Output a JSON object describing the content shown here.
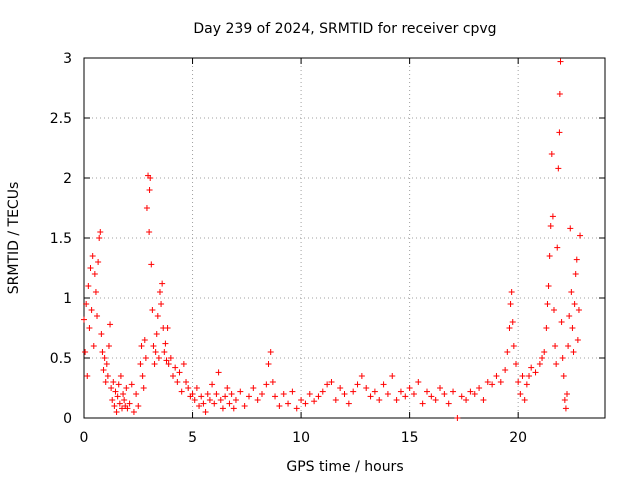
{
  "chart_data": {
    "type": "scatter",
    "title": "Day 239 of 2024, SRMTID for receiver cpvg",
    "xlabel": "GPS time / hours",
    "ylabel": "SRMTID / TECUs",
    "xlim": [
      0,
      24
    ],
    "ylim": [
      0,
      3
    ],
    "xticks": [
      0,
      5,
      10,
      15,
      20
    ],
    "yticks": [
      0,
      0.5,
      1,
      1.5,
      2,
      2.5,
      3
    ],
    "xtick_labels": [
      "0",
      "5",
      "10",
      "15",
      "20"
    ],
    "ytick_labels": [
      "0",
      "0.5",
      "1",
      "1.5",
      "2",
      "2.5",
      "3"
    ],
    "grid": true,
    "marker": "+",
    "color": "#ff0000",
    "series": [
      {
        "name": "SRMTID",
        "points": [
          [
            0.0,
            0.82
          ],
          [
            0.05,
            0.55
          ],
          [
            0.1,
            0.95
          ],
          [
            0.15,
            0.35
          ],
          [
            0.2,
            1.1
          ],
          [
            0.25,
            0.75
          ],
          [
            0.3,
            1.25
          ],
          [
            0.35,
            0.9
          ],
          [
            0.4,
            1.35
          ],
          [
            0.45,
            0.6
          ],
          [
            0.5,
            1.2
          ],
          [
            0.55,
            1.05
          ],
          [
            0.6,
            0.85
          ],
          [
            0.65,
            1.3
          ],
          [
            0.7,
            1.5
          ],
          [
            0.75,
            1.55
          ],
          [
            0.8,
            0.7
          ],
          [
            0.85,
            0.55
          ],
          [
            0.9,
            0.4
          ],
          [
            0.95,
            0.5
          ],
          [
            1.0,
            0.3
          ],
          [
            1.05,
            0.45
          ],
          [
            1.1,
            0.35
          ],
          [
            1.15,
            0.6
          ],
          [
            1.2,
            0.78
          ],
          [
            1.25,
            0.25
          ],
          [
            1.3,
            0.15
          ],
          [
            1.35,
            0.3
          ],
          [
            1.4,
            0.1
          ],
          [
            1.45,
            0.22
          ],
          [
            1.5,
            0.05
          ],
          [
            1.55,
            0.18
          ],
          [
            1.6,
            0.28
          ],
          [
            1.65,
            0.12
          ],
          [
            1.7,
            0.35
          ],
          [
            1.75,
            0.08
          ],
          [
            1.8,
            0.2
          ],
          [
            1.85,
            0.15
          ],
          [
            1.9,
            0.1
          ],
          [
            1.95,
            0.25
          ],
          [
            2.0,
            0.08
          ],
          [
            2.1,
            0.12
          ],
          [
            2.2,
            0.28
          ],
          [
            2.3,
            0.05
          ],
          [
            2.4,
            0.2
          ],
          [
            2.5,
            0.1
          ],
          [
            2.6,
            0.45
          ],
          [
            2.65,
            0.6
          ],
          [
            2.7,
            0.35
          ],
          [
            2.75,
            0.25
          ],
          [
            2.8,
            0.65
          ],
          [
            2.85,
            0.5
          ],
          [
            2.9,
            1.75
          ],
          [
            2.95,
            2.02
          ],
          [
            3.0,
            1.55
          ],
          [
            3.02,
            1.9
          ],
          [
            3.05,
            2.0
          ],
          [
            3.1,
            1.28
          ],
          [
            3.15,
            0.9
          ],
          [
            3.2,
            0.6
          ],
          [
            3.25,
            0.45
          ],
          [
            3.3,
            0.55
          ],
          [
            3.35,
            0.7
          ],
          [
            3.4,
            0.85
          ],
          [
            3.45,
            0.5
          ],
          [
            3.5,
            1.05
          ],
          [
            3.55,
            0.95
          ],
          [
            3.6,
            1.12
          ],
          [
            3.65,
            0.75
          ],
          [
            3.7,
            0.55
          ],
          [
            3.75,
            0.62
          ],
          [
            3.8,
            0.48
          ],
          [
            3.85,
            0.75
          ],
          [
            3.9,
            0.45
          ],
          [
            4.0,
            0.5
          ],
          [
            4.1,
            0.35
          ],
          [
            4.2,
            0.42
          ],
          [
            4.3,
            0.3
          ],
          [
            4.4,
            0.38
          ],
          [
            4.5,
            0.22
          ],
          [
            4.6,
            0.45
          ],
          [
            4.7,
            0.3
          ],
          [
            4.8,
            0.25
          ],
          [
            4.9,
            0.18
          ],
          [
            5.0,
            0.2
          ],
          [
            5.1,
            0.15
          ],
          [
            5.2,
            0.25
          ],
          [
            5.3,
            0.1
          ],
          [
            5.4,
            0.18
          ],
          [
            5.5,
            0.12
          ],
          [
            5.6,
            0.05
          ],
          [
            5.7,
            0.2
          ],
          [
            5.8,
            0.15
          ],
          [
            5.9,
            0.28
          ],
          [
            6.0,
            0.12
          ],
          [
            6.1,
            0.2
          ],
          [
            6.2,
            0.38
          ],
          [
            6.3,
            0.15
          ],
          [
            6.4,
            0.08
          ],
          [
            6.5,
            0.18
          ],
          [
            6.6,
            0.25
          ],
          [
            6.7,
            0.12
          ],
          [
            6.8,
            0.2
          ],
          [
            6.9,
            0.08
          ],
          [
            7.0,
            0.15
          ],
          [
            7.2,
            0.22
          ],
          [
            7.4,
            0.1
          ],
          [
            7.6,
            0.18
          ],
          [
            7.8,
            0.25
          ],
          [
            8.0,
            0.15
          ],
          [
            8.2,
            0.2
          ],
          [
            8.4,
            0.28
          ],
          [
            8.5,
            0.45
          ],
          [
            8.6,
            0.55
          ],
          [
            8.7,
            0.3
          ],
          [
            8.8,
            0.18
          ],
          [
            9.0,
            0.1
          ],
          [
            9.2,
            0.2
          ],
          [
            9.4,
            0.12
          ],
          [
            9.6,
            0.22
          ],
          [
            9.8,
            0.08
          ],
          [
            10.0,
            0.15
          ],
          [
            10.2,
            0.12
          ],
          [
            10.4,
            0.2
          ],
          [
            10.6,
            0.14
          ],
          [
            10.8,
            0.18
          ],
          [
            11.0,
            0.22
          ],
          [
            11.2,
            0.28
          ],
          [
            11.4,
            0.3
          ],
          [
            11.6,
            0.15
          ],
          [
            11.8,
            0.25
          ],
          [
            12.0,
            0.2
          ],
          [
            12.2,
            0.12
          ],
          [
            12.4,
            0.22
          ],
          [
            12.6,
            0.28
          ],
          [
            12.8,
            0.35
          ],
          [
            13.0,
            0.25
          ],
          [
            13.2,
            0.18
          ],
          [
            13.4,
            0.22
          ],
          [
            13.6,
            0.15
          ],
          [
            13.8,
            0.28
          ],
          [
            14.0,
            0.2
          ],
          [
            14.2,
            0.35
          ],
          [
            14.4,
            0.15
          ],
          [
            14.6,
            0.22
          ],
          [
            14.8,
            0.18
          ],
          [
            15.0,
            0.25
          ],
          [
            15.2,
            0.2
          ],
          [
            15.4,
            0.3
          ],
          [
            15.6,
            0.12
          ],
          [
            15.8,
            0.22
          ],
          [
            16.0,
            0.18
          ],
          [
            16.2,
            0.15
          ],
          [
            16.4,
            0.25
          ],
          [
            16.6,
            0.2
          ],
          [
            16.8,
            0.12
          ],
          [
            17.0,
            0.22
          ],
          [
            17.2,
            0.0
          ],
          [
            17.4,
            0.18
          ],
          [
            17.6,
            0.15
          ],
          [
            17.8,
            0.22
          ],
          [
            18.0,
            0.2
          ],
          [
            18.2,
            0.25
          ],
          [
            18.4,
            0.15
          ],
          [
            18.6,
            0.3
          ],
          [
            18.8,
            0.28
          ],
          [
            19.0,
            0.35
          ],
          [
            19.2,
            0.3
          ],
          [
            19.4,
            0.4
          ],
          [
            19.5,
            0.55
          ],
          [
            19.6,
            0.75
          ],
          [
            19.65,
            0.95
          ],
          [
            19.7,
            1.05
          ],
          [
            19.75,
            0.8
          ],
          [
            19.8,
            0.6
          ],
          [
            19.9,
            0.45
          ],
          [
            20.0,
            0.3
          ],
          [
            20.1,
            0.2
          ],
          [
            20.2,
            0.35
          ],
          [
            20.3,
            0.15
          ],
          [
            20.4,
            0.28
          ],
          [
            20.5,
            0.35
          ],
          [
            20.6,
            0.42
          ],
          [
            20.8,
            0.38
          ],
          [
            21.0,
            0.45
          ],
          [
            21.1,
            0.5
          ],
          [
            21.2,
            0.55
          ],
          [
            21.3,
            0.75
          ],
          [
            21.35,
            0.95
          ],
          [
            21.4,
            1.1
          ],
          [
            21.45,
            1.35
          ],
          [
            21.5,
            1.6
          ],
          [
            21.55,
            2.2
          ],
          [
            21.6,
            1.68
          ],
          [
            21.65,
            0.9
          ],
          [
            21.7,
            0.6
          ],
          [
            21.75,
            0.45
          ],
          [
            21.8,
            1.42
          ],
          [
            21.85,
            2.08
          ],
          [
            21.9,
            2.38
          ],
          [
            21.92,
            2.7
          ],
          [
            21.95,
            2.97
          ],
          [
            22.0,
            0.8
          ],
          [
            22.05,
            0.5
          ],
          [
            22.1,
            0.35
          ],
          [
            22.15,
            0.15
          ],
          [
            22.2,
            0.08
          ],
          [
            22.25,
            0.2
          ],
          [
            22.3,
            0.6
          ],
          [
            22.35,
            0.85
          ],
          [
            22.4,
            1.58
          ],
          [
            22.45,
            1.05
          ],
          [
            22.5,
            0.75
          ],
          [
            22.55,
            0.55
          ],
          [
            22.6,
            0.95
          ],
          [
            22.65,
            1.2
          ],
          [
            22.7,
            1.32
          ],
          [
            22.75,
            0.65
          ],
          [
            22.8,
            0.9
          ],
          [
            22.85,
            1.52
          ]
        ]
      }
    ]
  }
}
